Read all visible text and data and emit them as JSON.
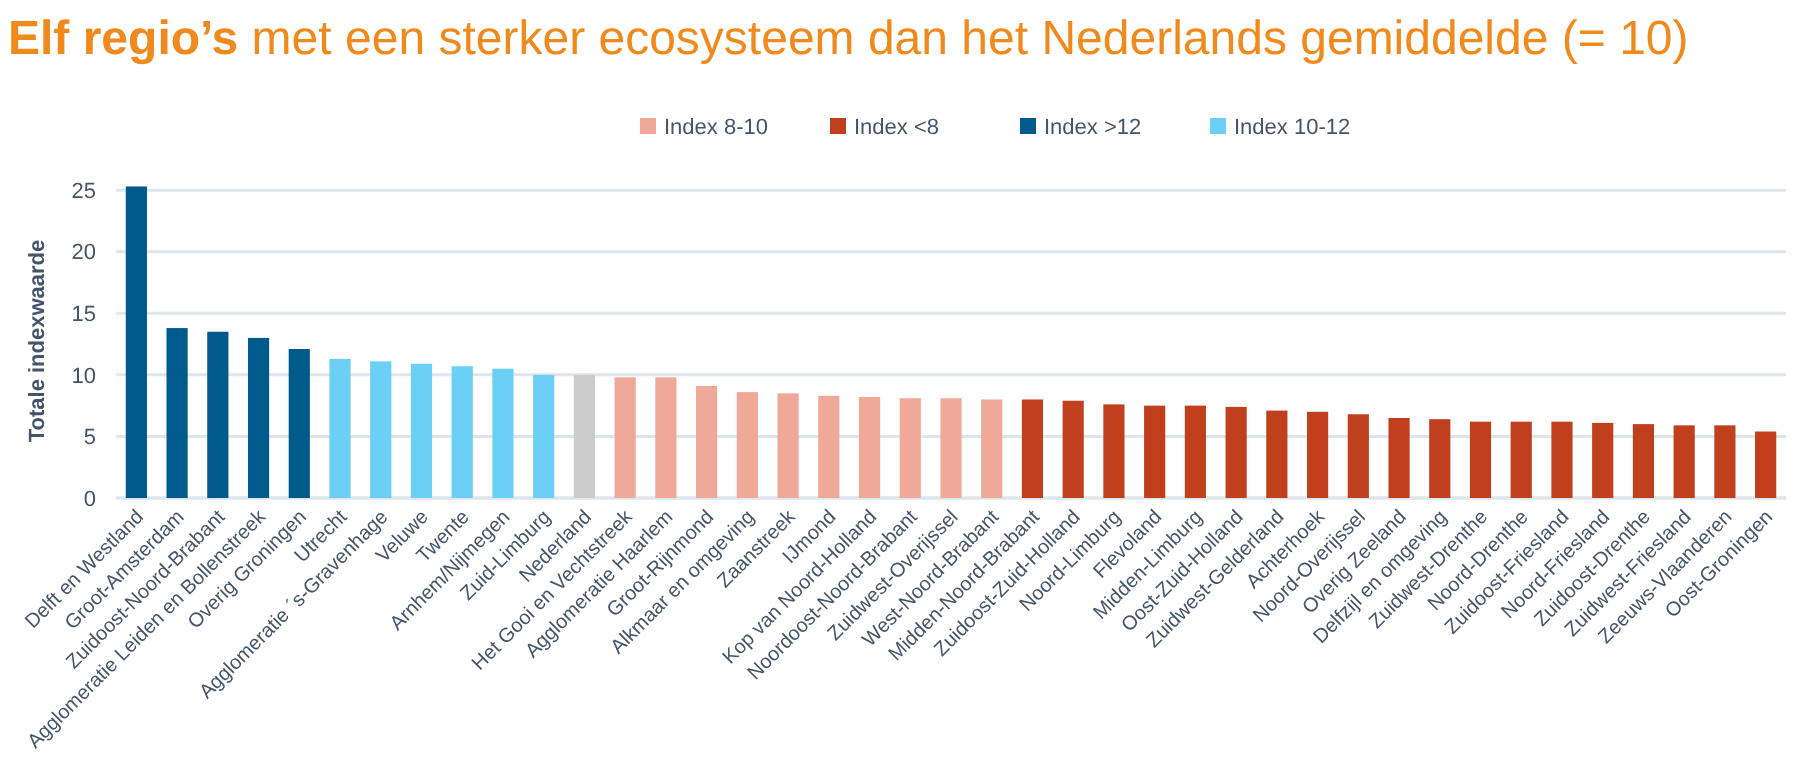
{
  "chart_data": {
    "type": "bar",
    "title": "Elf regio’s met een sterker ecosysteem dan het Nederlands gemiddelde (= 10)",
    "ylabel": "Totale indexwaarde",
    "categories": [
      "Delft en Westland",
      "Groot-Amsterdam",
      "Zuidoost-Noord-Brabant",
      "Agglomeratie Leiden en Bollenstreek",
      "Overig Groningen",
      "Utrecht",
      "Agglomeratie ´s-Gravenhage",
      "Veluwe",
      "Twente",
      "Arnhem/Nijmegen",
      "Zuid-Limburg",
      "Nederland",
      "Het Gooi en Vechtstreek",
      "Agglomeratie Haarlem",
      "Groot-Rijnmond",
      "Alkmaar en omgeving",
      "Zaanstreek",
      "IJmond",
      "Kop van Noord-Holland",
      "Noordoost-Noord-Brabant",
      "Zuidwest-Overijssel",
      "West-Noord-Brabant",
      "Midden-Noord-Brabant",
      "Zuidoost-Zuid-Holland",
      "Noord-Limburg",
      "Flevoland",
      "Midden-Limburg",
      "Oost-Zuid-Holland",
      "Zuidwest-Gelderland",
      "Achterhoek",
      "Noord-Overijssel",
      "Overig Zeeland",
      "Delfzijl en omgeving",
      "Zuidwest-Drenthe",
      "Noord-Drenthe",
      "Zuidoost-Friesland",
      "Noord-Friesland",
      "Zuidoost-Drenthe",
      "Zuidwest-Friesland",
      "Zeeuws-Vlaanderen",
      "Oost-Groningen"
    ],
    "series": [
      {
        "name": "Index 8-10",
        "color": "#f0a898",
        "values": [
          null,
          null,
          null,
          null,
          null,
          null,
          null,
          null,
          null,
          null,
          null,
          null,
          9.8,
          9.8,
          9.1,
          8.6,
          8.5,
          8.3,
          8.2,
          8.1,
          8.1,
          8.0,
          null,
          null,
          null,
          null,
          null,
          null,
          null,
          null,
          null,
          null,
          null,
          null,
          null,
          null,
          null,
          null,
          null,
          null,
          null
        ]
      },
      {
        "name": "Index <8",
        "color": "#c0401e",
        "values": [
          null,
          null,
          null,
          null,
          null,
          null,
          null,
          null,
          null,
          null,
          null,
          null,
          null,
          null,
          null,
          null,
          null,
          null,
          null,
          null,
          null,
          null,
          8.0,
          7.9,
          7.6,
          7.5,
          7.5,
          7.4,
          7.1,
          7.0,
          6.8,
          6.5,
          6.4,
          6.2,
          6.2,
          6.2,
          6.1,
          6.0,
          5.9,
          5.9,
          5.4
        ]
      },
      {
        "name": "Index >12",
        "color": "#005a8c",
        "values": [
          25.3,
          13.8,
          13.5,
          13.0,
          12.1,
          null,
          null,
          null,
          null,
          null,
          null,
          null,
          null,
          null,
          null,
          null,
          null,
          null,
          null,
          null,
          null,
          null,
          null,
          null,
          null,
          null,
          null,
          null,
          null,
          null,
          null,
          null,
          null,
          null,
          null,
          null,
          null,
          null,
          null,
          null,
          null
        ]
      },
      {
        "name": "Index 10-12",
        "color": "#6ccff6",
        "values": [
          null,
          null,
          null,
          null,
          null,
          11.3,
          11.1,
          10.9,
          10.7,
          10.5,
          10.0,
          null,
          null,
          null,
          null,
          null,
          null,
          null,
          null,
          null,
          null,
          null,
          null,
          null,
          null,
          null,
          null,
          null,
          null,
          null,
          null,
          null,
          null,
          null,
          null,
          null,
          null,
          null,
          null,
          null,
          null
        ]
      },
      {
        "color": "#cccccc",
        "values": [
          null,
          null,
          null,
          null,
          null,
          null,
          null,
          null,
          null,
          null,
          null,
          10.0,
          null,
          null,
          null,
          null,
          null,
          null,
          null,
          null,
          null,
          null,
          null,
          null,
          null,
          null,
          null,
          null,
          null,
          null,
          null,
          null,
          null,
          null,
          null,
          null,
          null,
          null,
          null,
          null,
          null
        ]
      }
    ],
    "ylim": [
      0,
      25.5
    ],
    "yticks": [
      0,
      5,
      10,
      15,
      20,
      25
    ],
    "grid": "y",
    "legend": "top"
  }
}
